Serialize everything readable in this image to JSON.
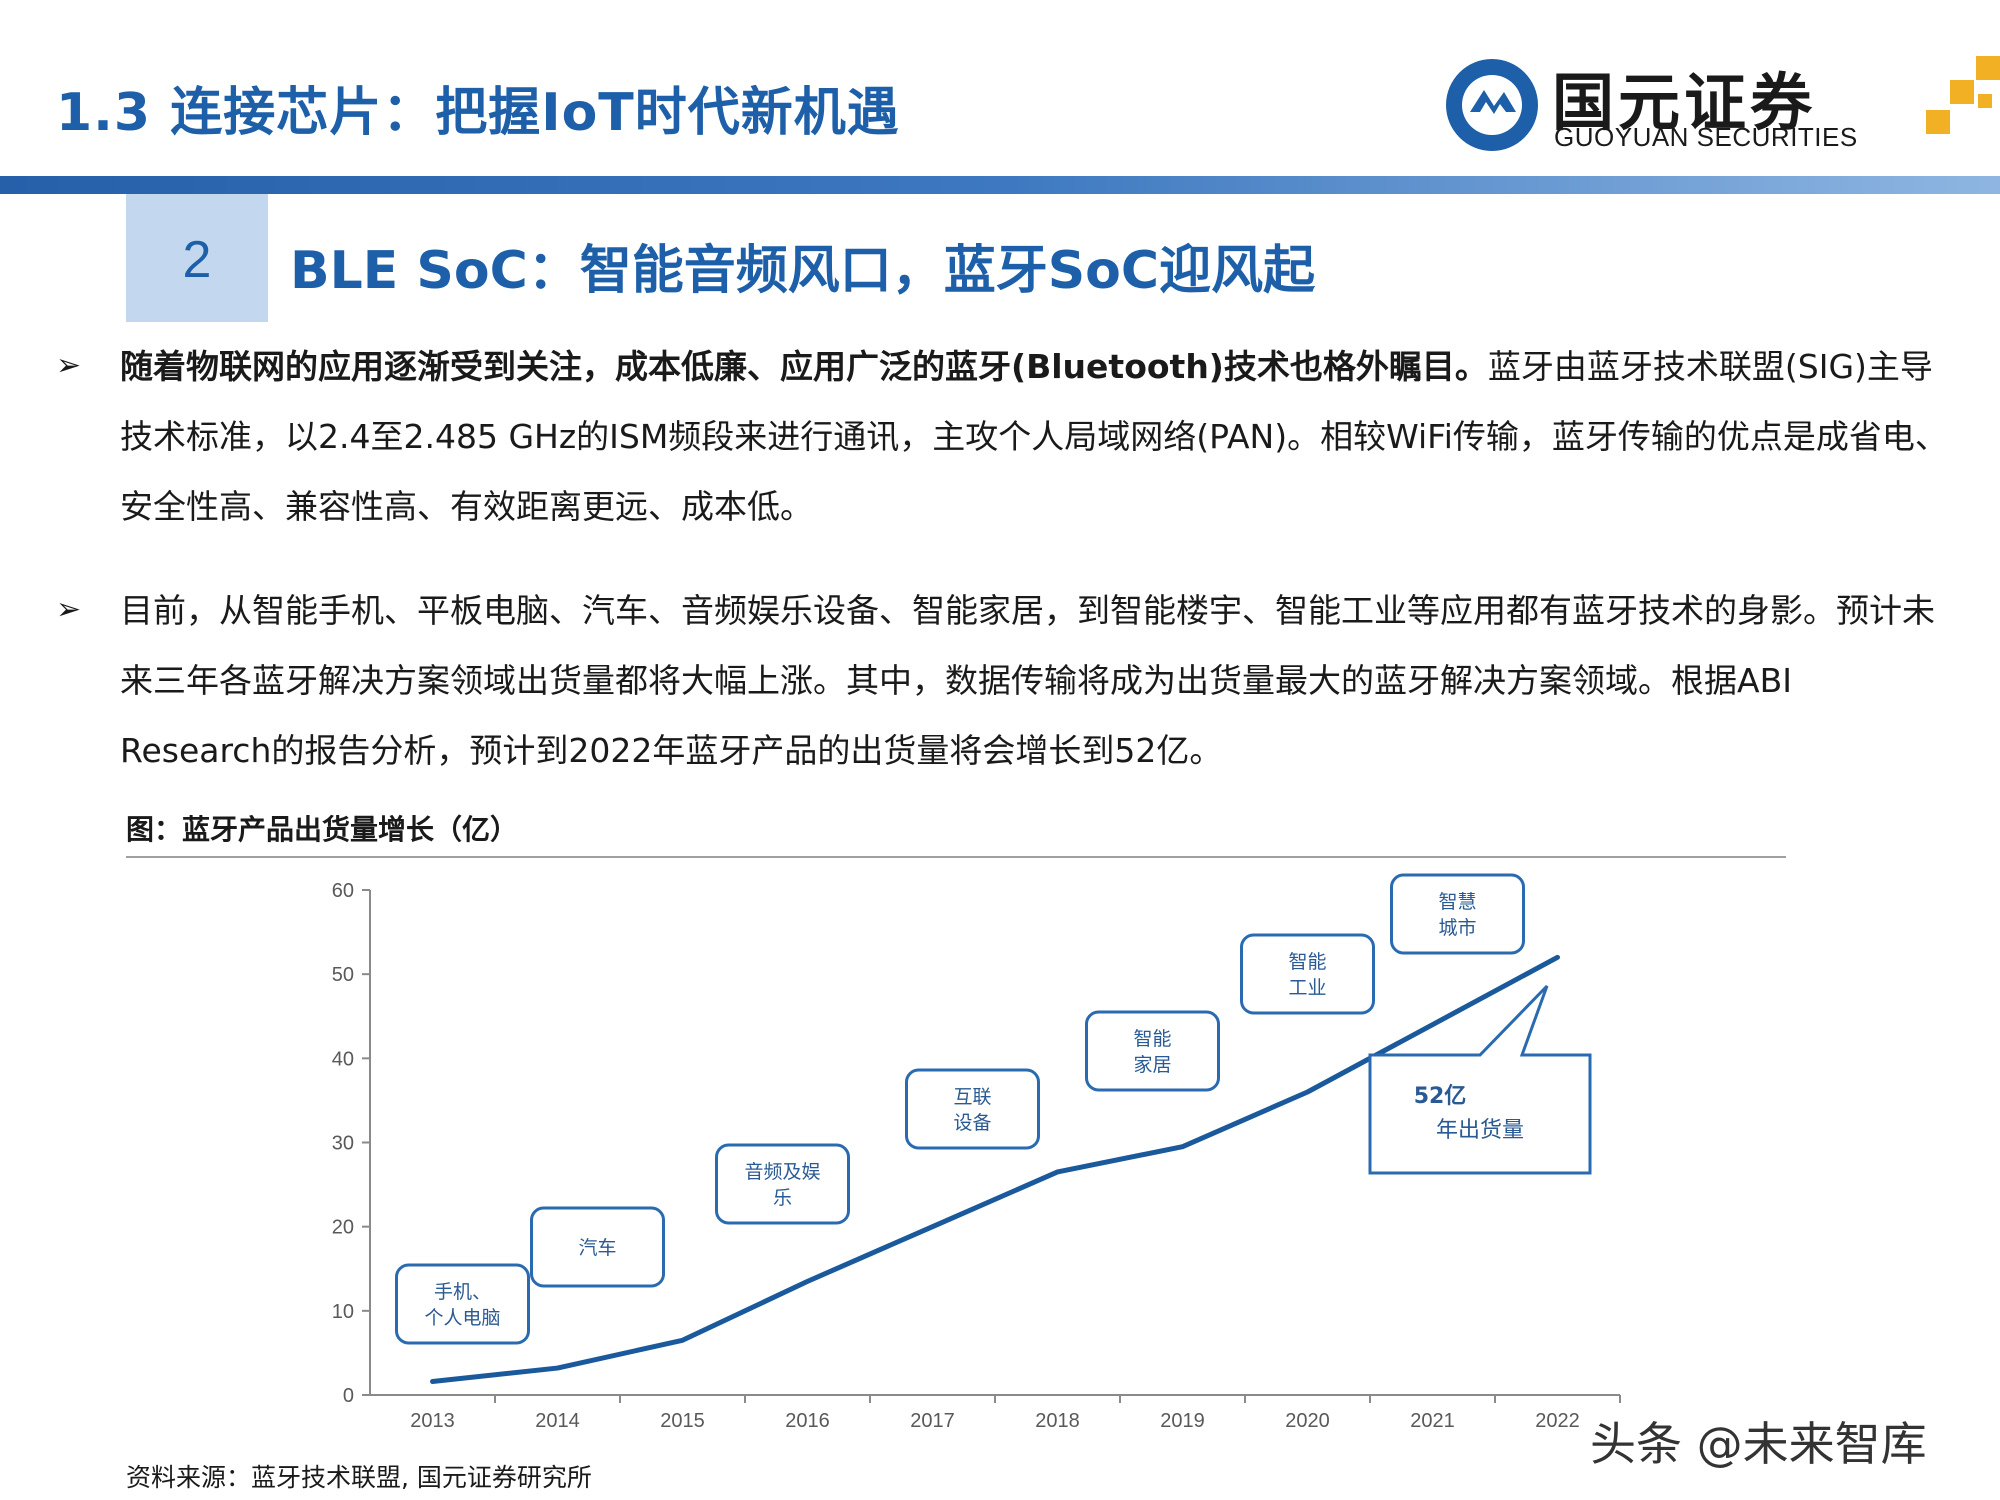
{
  "header": {
    "title": "1.3 连接芯片：把握IoT时代新机遇",
    "logo_cn": "国元证券",
    "logo_en": "GUOYUAN SECURITIES"
  },
  "section": {
    "number": "2",
    "title": "BLE SoC：智能音频风口，蓝牙SoC迎风起"
  },
  "bullets": [
    {
      "bold": "随着物联网的应用逐渐受到关注，成本低廉、应用广泛的蓝牙(Bluetooth)技术也格外瞩目。",
      "text": "蓝牙由蓝牙技术联盟(SIG)主导技术标准，以2.4至2.485 GHz的ISM频段来进行通讯，主攻个人局域网络(PAN)。相较WiFi传输，蓝牙传输的优点是成省电、安全性高、兼容性高、有效距离更远、成本低。"
    },
    {
      "bold": "",
      "text": "目前，从智能手机、平板电脑、汽车、音频娱乐设备、智能家居，到智能楼宇、智能工业等应用都有蓝牙技术的身影。预计未来三年各蓝牙解决方案领域出货量都将大幅上涨。其中，数据传输将成为出货量最大的蓝牙解决方案领域。根据ABI Research的报告分析，预计到2022年蓝牙产品的出货量将会增长到52亿。"
    }
  ],
  "figure": {
    "caption": "图：蓝牙产品出货量增长（亿）",
    "source": "资料来源：蓝牙技术联盟, 国元证券研究所"
  },
  "watermark": "头条 @未来智库",
  "colors": {
    "brand_blue": "#1d5fa8",
    "line_blue": "#1a5a9c",
    "box_border": "#2a6ab0"
  },
  "chart_data": {
    "type": "line",
    "title": "",
    "xlabel": "",
    "ylabel": "",
    "x": [
      "2013",
      "2014",
      "2015",
      "2016",
      "2017",
      "2018",
      "2019",
      "2020",
      "2021",
      "2022"
    ],
    "series": [
      {
        "values": [
          1.6,
          3.2,
          6.5,
          13.5,
          20,
          26.5,
          29.5,
          36,
          44,
          52
        ]
      }
    ],
    "ylim": [
      0,
      60
    ],
    "yticks": [
      0,
      10,
      20,
      30,
      40,
      50,
      60
    ],
    "grid": false,
    "annotations": [
      {
        "lines": [
          "手机、",
          "个人电脑"
        ],
        "year": "2013"
      },
      {
        "lines": [
          "汽车"
        ],
        "year": "2014"
      },
      {
        "lines": [
          "音频及娱",
          "乐"
        ],
        "year": "2015"
      },
      {
        "lines": [
          "互联",
          "设备"
        ],
        "year": "2017"
      },
      {
        "lines": [
          "智能",
          "家居"
        ],
        "year": "2018"
      },
      {
        "lines": [
          "智能",
          "工业"
        ],
        "year": "2020"
      },
      {
        "lines": [
          "智慧",
          "城市"
        ],
        "year": "2021"
      }
    ],
    "callout": {
      "value": "52亿",
      "label": "年出货量"
    }
  }
}
